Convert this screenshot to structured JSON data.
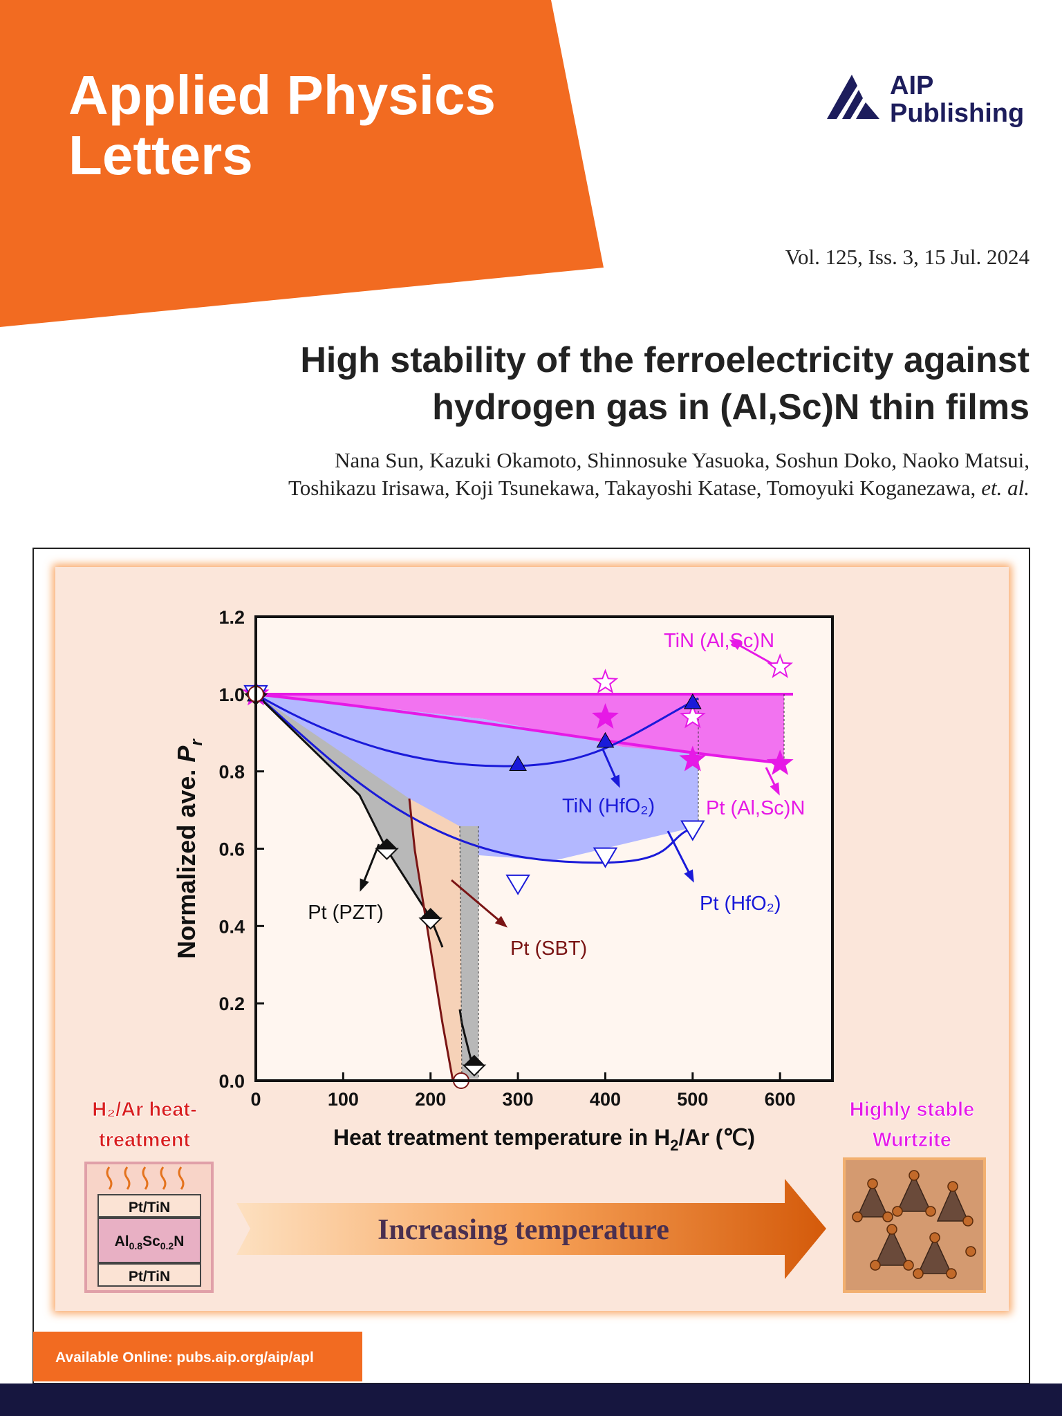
{
  "header": {
    "journal": [
      "Applied Physics",
      "Letters"
    ],
    "publisher": [
      "AIP",
      "Publishing"
    ],
    "issue": "Vol. 125, Iss. 3, 15 Jul. 2024"
  },
  "article": {
    "title": [
      "High stability of the ferroelectricity against",
      "hydrogen gas in (Al,Sc)N thin films"
    ],
    "authors": [
      "Nana Sun, Kazuki Okamoto, Shinnosuke Yasuoka, Soshun Doko, Naoko Matsui,",
      "Toshikazu Irisawa, Koji Tsunekawa, Takayoshi Katase, Tomoyuki Koganezawa,"
    ],
    "authors_etal": "et. al."
  },
  "chart_data": {
    "type": "scatter",
    "x_label": [
      "Heat treatment temperature in H",
      "2",
      "/Ar (℃)"
    ],
    "y_label": [
      "Normalized ave. ",
      "P",
      "r"
    ],
    "xlim": [
      0,
      660
    ],
    "ylim": [
      0,
      1.2
    ],
    "xticks": [
      0,
      100,
      200,
      300,
      400,
      500,
      600
    ],
    "yticks": [
      {
        "value": 0,
        "label": "0.0"
      },
      0.2,
      0.4,
      0.6,
      0.8,
      {
        "value": 1,
        "label": "1.0"
      },
      1.2
    ],
    "series": [
      {
        "name": "TiN (Al,Sc)N",
        "color": "#e619e6",
        "marker": "star-open",
        "x": [
          0,
          400,
          500,
          600
        ],
        "values": [
          1.0,
          1.03,
          0.94,
          1.07
        ]
      },
      {
        "name": "Pt (Al,Sc)N",
        "color": "#e619e6",
        "marker": "star",
        "x": [
          0,
          400,
          500,
          600
        ],
        "values": [
          1.0,
          0.94,
          0.83,
          0.82
        ]
      },
      {
        "name": "TiN (HfO₂)",
        "color": "#1a1ad9",
        "marker": "triangle",
        "x": [
          0,
          300,
          400,
          500
        ],
        "values": [
          1.0,
          0.82,
          0.88,
          0.98
        ]
      },
      {
        "name": "Pt (HfO₂)",
        "color": "#1a1ad9",
        "marker": "triangle-down-open",
        "x": [
          0,
          300,
          400,
          500
        ],
        "values": [
          1.0,
          0.51,
          0.58,
          0.65
        ]
      },
      {
        "name": "Pt (PZT)",
        "color": "#111111",
        "marker": "diamond-half",
        "x": [
          0,
          150,
          200,
          250
        ],
        "values": [
          1.0,
          0.6,
          0.42,
          0.04
        ]
      },
      {
        "name": "Pt (SBT)",
        "color": "#7a1414",
        "marker": "circle-open",
        "x": [
          0,
          235
        ],
        "values": [
          1.0,
          0.0
        ]
      }
    ]
  },
  "graphic": {
    "left_label": [
      "H₂/Ar heat-",
      "treatment"
    ],
    "stack": {
      "top": "Pt/TiN",
      "middle": [
        "Al",
        "0.8",
        "Sc",
        "0.2",
        "N"
      ],
      "bottom": "Pt/TiN"
    },
    "arrow_label": "Increasing temperature",
    "right_label": [
      "Highly stable",
      "Wurtzite"
    ]
  },
  "footer": "Available Online: pubs.aip.org/aip/apl"
}
